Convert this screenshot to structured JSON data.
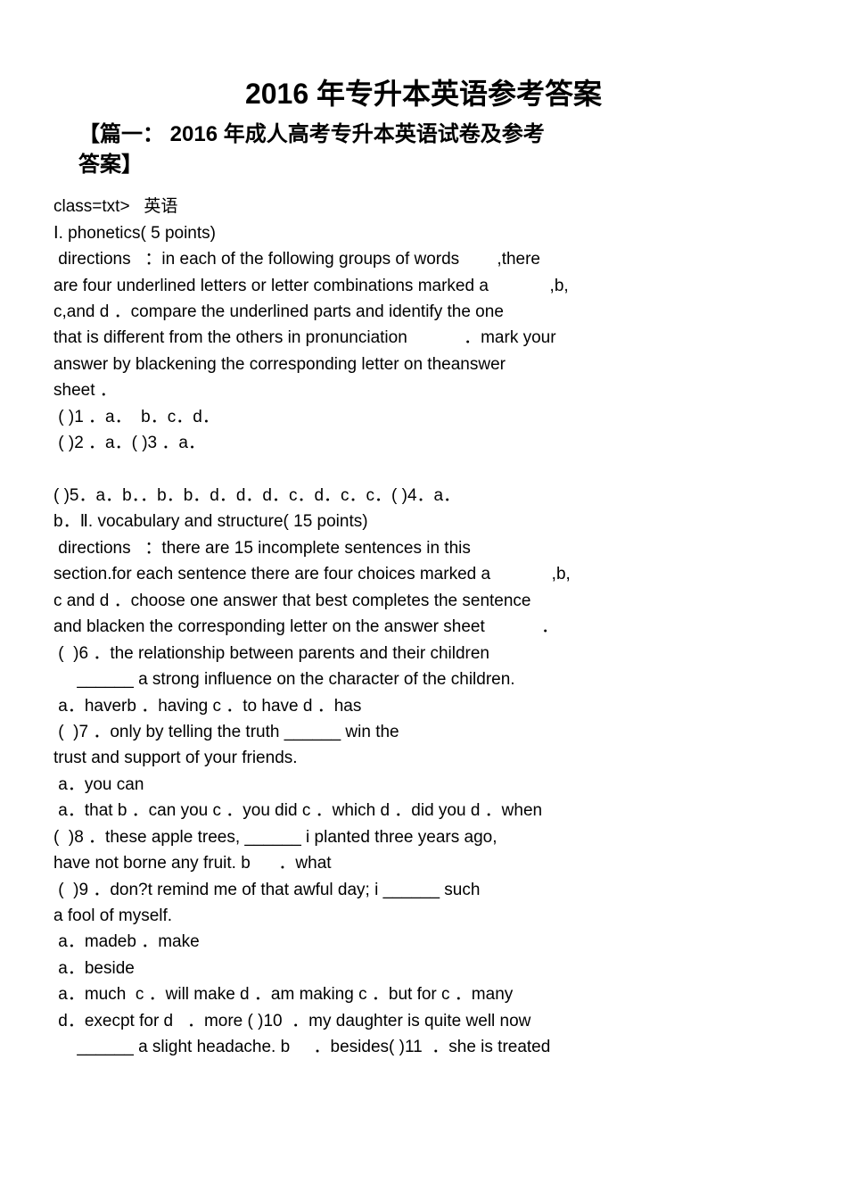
{
  "title": "2016 年专升本英语参考答案",
  "subtitle_l1": "【篇一： 2016 年成人高考专升本英语试卷及参考",
  "subtitle_l2": "答案】",
  "line_class": "class=txt>   ",
  "line_class_cn": "英语",
  "line_phon": "Ⅰ. phonetics( 5 points)",
  "dir1_a": " directions   ：in each of the following groups of words        ,there",
  "dir1_b": "are four underlined letters or letter combinations marked a             ,b,",
  "dir1_c": "c,and d ．compare the underlined parts and identify the one",
  "dir1_d": "that is different from the others in pronunciation            ．mark your",
  "dir1_e": "answer by blackening the corresponding letter on theanswer",
  "dir1_f": "sheet ．",
  "q1": " ( )1 ．a．  b．c．d．",
  "q2": " ( )2 ．a．( )3 ．a．",
  "q5a": "( )5．a．b．．b．b．d．d．d．c．d．c．c．( )4．a．",
  "q5b": "b．Ⅱ. vocabulary and structure( 15 points)",
  "dir2_a": " directions   ：there are 15 incomplete sentences in this",
  "dir2_b": "section.for each sentence there are four choices marked a             ,b,",
  "dir2_c": "c and d ．choose one answer that best completes the sentence",
  "dir2_d": "and blacken the corresponding letter on the answer sheet            ．",
  "q6a": " (  )6 ．the relationship between parents and their children",
  "q6b": "     ______ a strong influence on the character of the children.",
  "q6c": " a．haverb ．having c ．to have d ．has",
  "q7a": " (  )7 ．only by telling the truth ______ win the",
  "q7b": "trust and support of your friends.",
  "q7c": " a．you can",
  "q7d": " a．that b ．can you c ．you did c ．which d ．did you d ．when",
  "q8a": "(  )8 ．these apple trees, ______ i planted three years ago,",
  "q8b": "have not borne any fruit. b      ．what",
  "q9a": " (  )9 ．don?t remind me of that awful day; i ______ such",
  "q9b": "a fool of myself.",
  "q9c": " a．madeb ．make",
  "q10a": " a．beside",
  "q10b": " a．much  c ．will make d ．am making c ．but for c ．many",
  "q10c": " d．execpt for d   ．more ( )10  ．my daughter is quite well now",
  "q10d": "     ______ a slight headache. b     ．besides( )11  ．she is treated"
}
